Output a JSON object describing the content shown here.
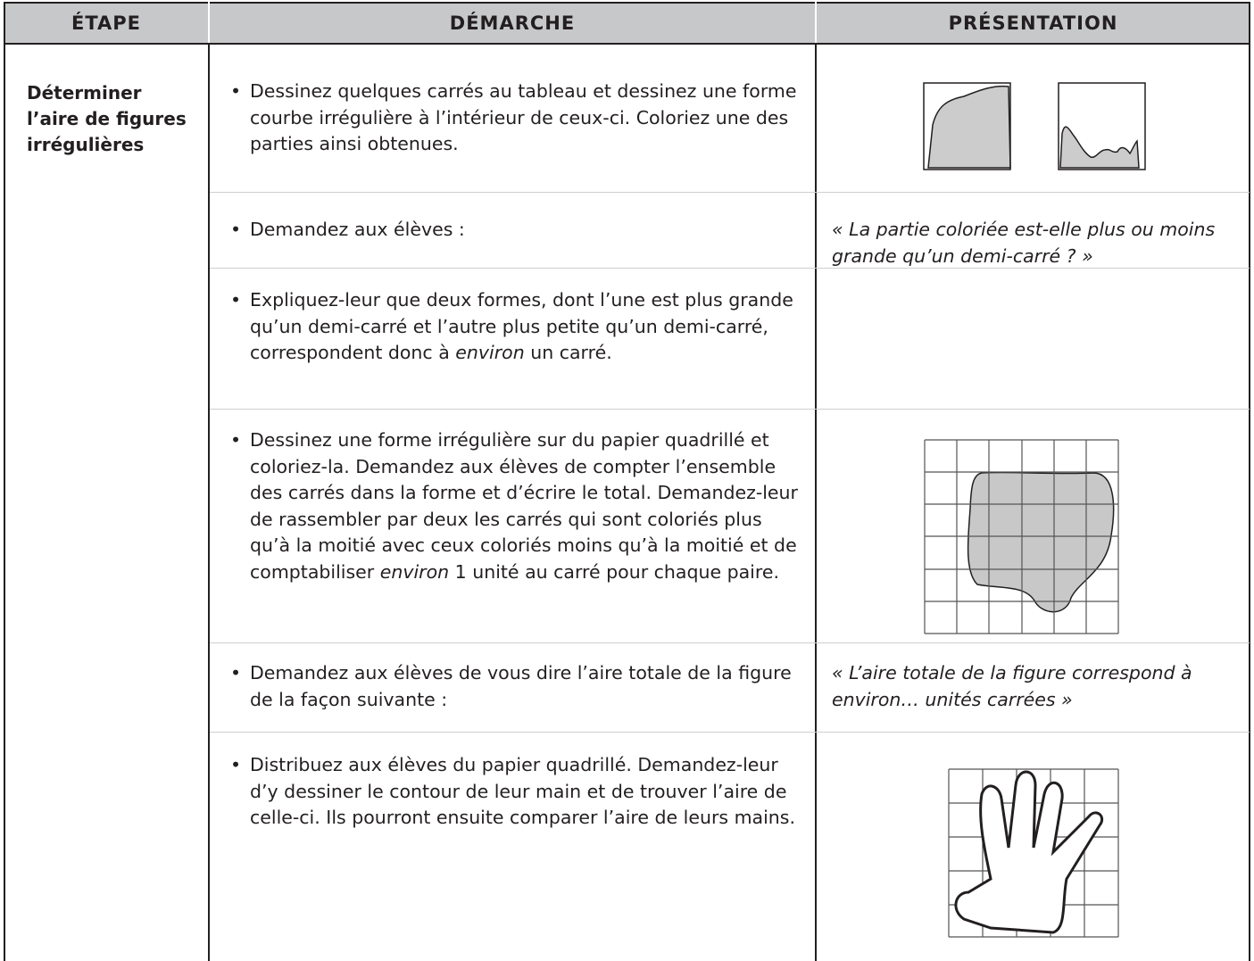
{
  "header": {
    "columns": [
      "ÉTAPE",
      "DÉMARCHE",
      "PRÉSENTATION"
    ]
  },
  "row": {
    "etape": "Déterminer l’aire de figures irrégulières",
    "items": [
      {
        "runs": [
          {
            "text": "Dessinez quelques carrés au tableau et dessinez une forme courbe irrégulière à l’intérieur de ceux-ci. Coloriez une des parties ainsi obtenues."
          }
        ]
      },
      {
        "runs": [
          {
            "text": "Demandez aux élèves :"
          }
        ],
        "presentation": "« La partie coloriée est-elle plus ou moins grande qu’un demi-carré ? »"
      },
      {
        "runs": [
          {
            "text": "Expliquez-leur que deux formes, dont l’une est plus grande qu’un demi-carré et l’autre plus petite qu’un demi-carré, correspondent donc à "
          },
          {
            "text": "environ",
            "italic": true
          },
          {
            "text": " un carré."
          }
        ]
      },
      {
        "runs": [
          {
            "text": "Dessinez une forme irrégulière sur du papier quadrillé et coloriez-la. Demandez aux élèves de compter l’ensemble des carrés dans la forme et d’écrire le total. Demandez-leur de rassembler par deux les carrés qui sont coloriés plus qu’à la moitié avec ceux coloriés moins qu’à la moitié et de comptabiliser "
          },
          {
            "text": "environ",
            "italic": true
          },
          {
            "text": " 1 unité au carré pour chaque paire."
          }
        ]
      },
      {
        "runs": [
          {
            "text": "Demandez aux élèves de vous dire l’aire totale de la figure de la façon suivante :"
          }
        ],
        "presentation": "« L’aire totale de la figure correspond à environ… unités carrées »"
      },
      {
        "runs": [
          {
            "text": "Distribuez aux élèves du papier quadrillé. Demandez-leur d’y dessiner le contour de leur main et de trouver l’aire de celle-ci. Ils pourront ensuite comparer l’aire de leurs mains."
          }
        ]
      }
    ]
  }
}
